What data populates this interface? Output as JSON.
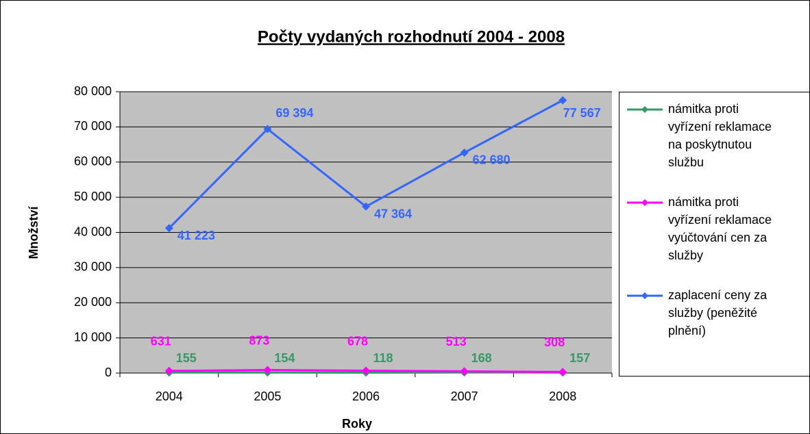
{
  "chart_data": {
    "type": "line",
    "title": "Počty vydaných rozhodnutí 2004 - 2008",
    "x_label": "Roky",
    "y_label": "Množství",
    "categories": [
      "2004",
      "2005",
      "2006",
      "2007",
      "2008"
    ],
    "series": [
      {
        "name": "námitka proti vyřízení reklamace na poskytnutou službu",
        "color": "#339966",
        "values": [
          155,
          154,
          118,
          168,
          157
        ]
      },
      {
        "name": "námitka proti vyřízení reklamace vyúčtování cen za služby",
        "color": "#ff00ff",
        "values": [
          631,
          873,
          678,
          513,
          308
        ]
      },
      {
        "name": "zaplacení ceny za služby (peněžité plnění)",
        "color": "#3366ff",
        "values": [
          41223,
          69394,
          47364,
          62680,
          77567
        ],
        "value_labels": [
          "41 223",
          "69 394",
          "47 364",
          "62 680",
          "77 567"
        ]
      }
    ],
    "ylim": [
      0,
      80000
    ],
    "yticks": [
      0,
      {
        "value": 10000,
        "label": "10 000"
      },
      {
        "value": 20000,
        "label": "20 000"
      },
      {
        "value": 30000,
        "label": "30 000"
      },
      {
        "value": 40000,
        "label": "40 000"
      },
      {
        "value": 50000,
        "label": "50 000"
      },
      {
        "value": 60000,
        "label": "60 000"
      },
      {
        "value": 70000,
        "label": "70 000"
      },
      {
        "value": 80000,
        "label": "80 000"
      }
    ],
    "grid": true,
    "legend": "right"
  }
}
